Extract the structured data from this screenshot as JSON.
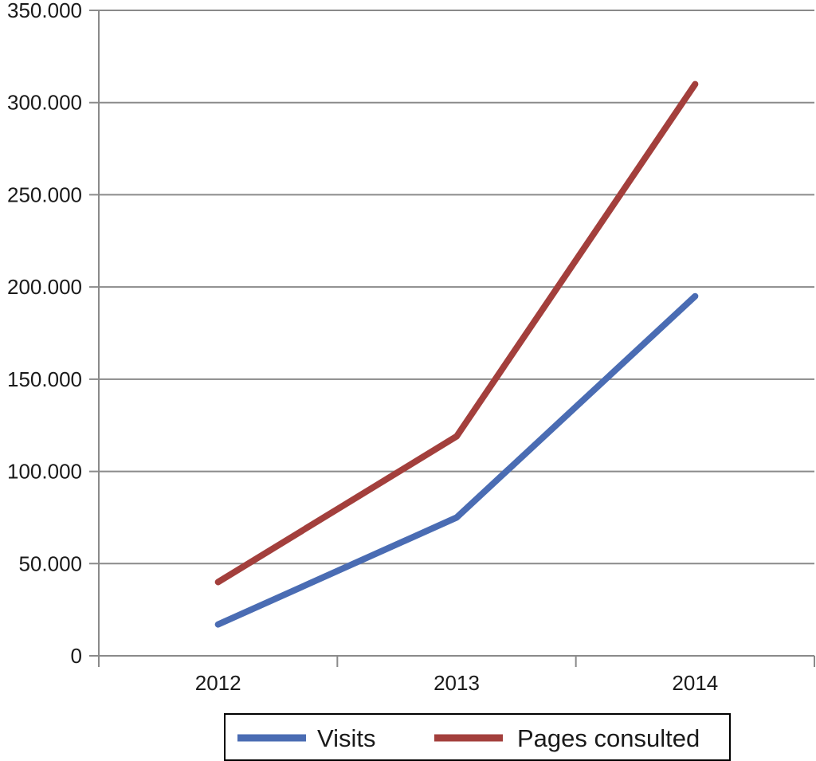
{
  "chart_data": {
    "type": "line",
    "categories": [
      "2012",
      "2013",
      "2014"
    ],
    "series": [
      {
        "name": "Visits",
        "color": "#4a6cb3",
        "values": [
          17000,
          75000,
          195000
        ]
      },
      {
        "name": "Pages consulted",
        "color": "#a33f3c",
        "values": [
          40000,
          119000,
          310000
        ]
      }
    ],
    "ylim": [
      0,
      350000
    ],
    "yticks": [
      0,
      50000,
      100000,
      150000,
      200000,
      250000,
      300000,
      350000
    ],
    "ytick_labels": [
      "0",
      "50.000",
      "100.000",
      "150.000",
      "200.000",
      "250.000",
      "300.000",
      "350.000"
    ],
    "grid": true,
    "legend_position": "bottom"
  }
}
